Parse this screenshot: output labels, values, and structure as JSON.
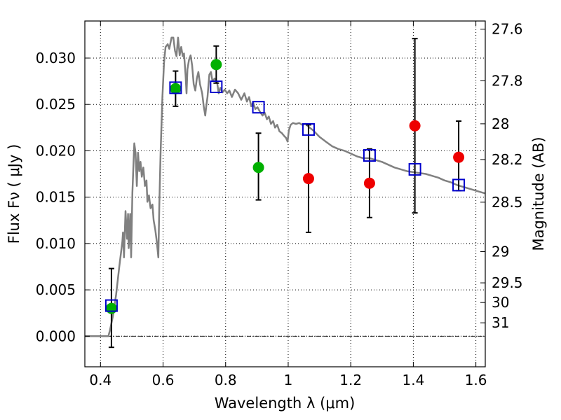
{
  "chart_data": {
    "type": "scatter",
    "xlabel": "Wavelength  λ (μm)",
    "ylabel": "Flux  Fν  ( μJy )",
    "y2label": "Magnitude (AB)",
    "xlim": [
      0.35,
      1.63
    ],
    "ylim": [
      -0.0033,
      0.034
    ],
    "x_ticks": [
      0.4,
      0.6,
      0.8,
      1.0,
      1.2,
      1.4,
      1.6
    ],
    "x_tick_labels": [
      "0.4",
      "0.6",
      "0.8",
      "1",
      "1.2",
      "1.4",
      "1.6"
    ],
    "y_ticks": [
      0.0,
      0.005,
      0.01,
      0.015,
      0.02,
      0.025,
      0.03
    ],
    "y_tick_labels": [
      "0.000",
      "0.005",
      "0.010",
      "0.015",
      "0.020",
      "0.025",
      "0.030"
    ],
    "mag_ticks": [
      27.6,
      27.8,
      28,
      28.2,
      28.5,
      29,
      29.5,
      30,
      31
    ],
    "mag_tick_labels": [
      "27.6",
      "27.8",
      "28",
      "28.2",
      "28.5",
      "29",
      "29.5",
      "30",
      "31"
    ],
    "grid": true,
    "colors": {
      "model": "#808080",
      "model_photometry": "#0000cc",
      "observed_optical": "#00b000",
      "observed_nir": "#ee0000",
      "error_bar": "#000000"
    },
    "series": [
      {
        "kind": "line",
        "color": "#808080",
        "points": [
          [
            0.35,
            0.0
          ],
          [
            0.42,
            0.0
          ],
          [
            0.425,
            0.0
          ],
          [
            0.43,
            0.0006
          ],
          [
            0.44,
            0.0022
          ],
          [
            0.45,
            0.0045
          ],
          [
            0.46,
            0.0075
          ],
          [
            0.47,
            0.0102
          ],
          [
            0.472,
            0.0112
          ],
          [
            0.475,
            0.0085
          ],
          [
            0.48,
            0.0135
          ],
          [
            0.485,
            0.0105
          ],
          [
            0.488,
            0.0132
          ],
          [
            0.49,
            0.0095
          ],
          [
            0.495,
            0.0132
          ],
          [
            0.498,
            0.0085
          ],
          [
            0.502,
            0.0155
          ],
          [
            0.508,
            0.0208
          ],
          [
            0.512,
            0.0198
          ],
          [
            0.516,
            0.0162
          ],
          [
            0.52,
            0.0198
          ],
          [
            0.524,
            0.0178
          ],
          [
            0.528,
            0.0188
          ],
          [
            0.532,
            0.0172
          ],
          [
            0.537,
            0.0182
          ],
          [
            0.542,
            0.0162
          ],
          [
            0.547,
            0.0168
          ],
          [
            0.55,
            0.0145
          ],
          [
            0.555,
            0.0152
          ],
          [
            0.56,
            0.0138
          ],
          [
            0.566,
            0.0142
          ],
          [
            0.57,
            0.0125
          ],
          [
            0.575,
            0.0115
          ],
          [
            0.58,
            0.0102
          ],
          [
            0.585,
            0.0085
          ],
          [
            0.588,
            0.0142
          ],
          [
            0.592,
            0.0198
          ],
          [
            0.598,
            0.0258
          ],
          [
            0.603,
            0.0295
          ],
          [
            0.608,
            0.0312
          ],
          [
            0.615,
            0.0315
          ],
          [
            0.62,
            0.031
          ],
          [
            0.627,
            0.0322
          ],
          [
            0.633,
            0.0322
          ],
          [
            0.638,
            0.0308
          ],
          [
            0.643,
            0.0302
          ],
          [
            0.648,
            0.0322
          ],
          [
            0.653,
            0.0303
          ],
          [
            0.658,
            0.0312
          ],
          [
            0.663,
            0.0302
          ],
          [
            0.667,
            0.0305
          ],
          [
            0.672,
            0.0282
          ],
          [
            0.675,
            0.0262
          ],
          [
            0.678,
            0.0288
          ],
          [
            0.683,
            0.0298
          ],
          [
            0.688,
            0.0303
          ],
          [
            0.693,
            0.0292
          ],
          [
            0.698,
            0.0272
          ],
          [
            0.703,
            0.0265
          ],
          [
            0.708,
            0.0278
          ],
          [
            0.713,
            0.0285
          ],
          [
            0.718,
            0.0272
          ],
          [
            0.725,
            0.0262
          ],
          [
            0.73,
            0.0248
          ],
          [
            0.735,
            0.0238
          ],
          [
            0.738,
            0.0248
          ],
          [
            0.742,
            0.0258
          ],
          [
            0.748,
            0.0282
          ],
          [
            0.753,
            0.0285
          ],
          [
            0.758,
            0.0275
          ],
          [
            0.765,
            0.0278
          ],
          [
            0.772,
            0.0275
          ],
          [
            0.778,
            0.0262
          ],
          [
            0.783,
            0.0268
          ],
          [
            0.79,
            0.0263
          ],
          [
            0.797,
            0.0266
          ],
          [
            0.805,
            0.0262
          ],
          [
            0.812,
            0.0265
          ],
          [
            0.82,
            0.0258
          ],
          [
            0.83,
            0.0266
          ],
          [
            0.84,
            0.0262
          ],
          [
            0.85,
            0.0255
          ],
          [
            0.86,
            0.0262
          ],
          [
            0.868,
            0.0253
          ],
          [
            0.875,
            0.0258
          ],
          [
            0.882,
            0.0248
          ],
          [
            0.888,
            0.0252
          ],
          [
            0.895,
            0.0245
          ],
          [
            0.902,
            0.0247
          ],
          [
            0.91,
            0.0242
          ],
          [
            0.918,
            0.0238
          ],
          [
            0.925,
            0.0241
          ],
          [
            0.932,
            0.0234
          ],
          [
            0.938,
            0.0237
          ],
          [
            0.945,
            0.0229
          ],
          [
            0.952,
            0.0232
          ],
          [
            0.958,
            0.0225
          ],
          [
            0.965,
            0.0228
          ],
          [
            0.972,
            0.0221
          ],
          [
            0.98,
            0.0219
          ],
          [
            0.987,
            0.0216
          ],
          [
            0.993,
            0.0214
          ],
          [
            0.998,
            0.021
          ],
          [
            1.002,
            0.0222
          ],
          [
            1.008,
            0.0228
          ],
          [
            1.015,
            0.023
          ],
          [
            1.025,
            0.0229
          ],
          [
            1.035,
            0.023
          ],
          [
            1.045,
            0.0228
          ],
          [
            1.055,
            0.0229
          ],
          [
            1.065,
            0.0226
          ],
          [
            1.08,
            0.0222
          ],
          [
            1.1,
            0.0215
          ],
          [
            1.12,
            0.021
          ],
          [
            1.14,
            0.0205
          ],
          [
            1.16,
            0.0202
          ],
          [
            1.18,
            0.02
          ],
          [
            1.2,
            0.0197
          ],
          [
            1.22,
            0.0194
          ],
          [
            1.24,
            0.0192
          ],
          [
            1.26,
            0.0192
          ],
          [
            1.28,
            0.019
          ],
          [
            1.3,
            0.0188
          ],
          [
            1.32,
            0.0185
          ],
          [
            1.34,
            0.0182
          ],
          [
            1.36,
            0.018
          ],
          [
            1.38,
            0.0178
          ],
          [
            1.4,
            0.0177
          ],
          [
            1.42,
            0.0176
          ],
          [
            1.44,
            0.0175
          ],
          [
            1.46,
            0.0173
          ],
          [
            1.48,
            0.0171
          ],
          [
            1.5,
            0.0168
          ],
          [
            1.52,
            0.0166
          ],
          [
            1.54,
            0.0163
          ],
          [
            1.56,
            0.0161
          ],
          [
            1.58,
            0.0159
          ],
          [
            1.6,
            0.0157
          ],
          [
            1.63,
            0.0154
          ]
        ]
      },
      {
        "kind": "model_photometry",
        "marker": "square",
        "color": "#0000cc",
        "x": [
          0.435,
          0.64,
          0.77,
          0.905,
          1.065,
          1.26,
          1.405,
          1.545
        ],
        "y": [
          0.0033,
          0.0268,
          0.0269,
          0.0247,
          0.0223,
          0.0195,
          0.018,
          0.0163
        ]
      },
      {
        "kind": "observed_optical",
        "marker": "circle",
        "color": "#00b000",
        "x": [
          0.435,
          0.64,
          0.77,
          0.905
        ],
        "y": [
          0.003,
          0.0267,
          0.0293,
          0.0182
        ],
        "yerr_low": [
          0.0042,
          0.0019,
          0.002,
          0.0035
        ],
        "yerr_high": [
          0.0043,
          0.0019,
          0.002,
          0.0037
        ]
      },
      {
        "kind": "observed_nir",
        "marker": "circle",
        "color": "#ee0000",
        "x": [
          1.065,
          1.26,
          1.405,
          1.545
        ],
        "y": [
          0.017,
          0.0165,
          0.0227,
          0.0193
        ],
        "yerr_low": [
          0.0058,
          0.0037,
          0.0094,
          0.0036
        ],
        "yerr_high": [
          0.0058,
          0.0037,
          0.0094,
          0.0039
        ]
      }
    ]
  }
}
